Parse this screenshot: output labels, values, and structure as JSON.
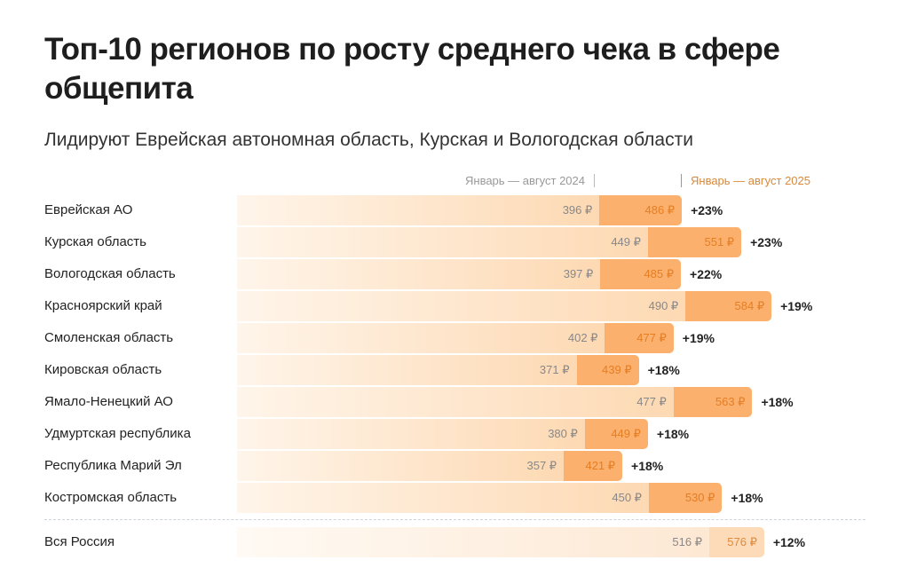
{
  "title": "Топ-10 регионов по росту среднего чека в сфере общепита",
  "subtitle": "Лидируют Еврейская автономная область, Курская и Вологодская области",
  "chart_data": {
    "type": "bar",
    "title": "Топ-10 регионов по росту среднего чека в сфере общепита",
    "subtitle": "Лидируют Еврейская автономная область, Курская и Вологодская области",
    "unit": "₽",
    "categories": [
      "Еврейская АО",
      "Курская область",
      "Вологодская область",
      "Красноярский край",
      "Смоленская область",
      "Кировская область",
      "Ямало-Ненецкий АО",
      "Удмуртская республика",
      "Республика Марий Эл",
      "Костромская область"
    ],
    "series": [
      {
        "name": "Январь — август 2024",
        "values": [
          396,
          449,
          397,
          490,
          402,
          371,
          477,
          380,
          357,
          450
        ]
      },
      {
        "name": "Январь — август 2025",
        "values": [
          486,
          551,
          485,
          584,
          477,
          439,
          563,
          449,
          421,
          530
        ]
      }
    ],
    "growth": [
      "+23%",
      "+23%",
      "+22%",
      "+19%",
      "+19%",
      "+18%",
      "+18%",
      "+18%",
      "+18%",
      "+18%"
    ],
    "total": {
      "name": "Вся Россия",
      "v2024": 516,
      "v2025": 576,
      "growth": "+12%"
    },
    "colors": {
      "bar2024": "#fdd9b3",
      "bar2025": "#fbb06e",
      "label2025": "#e67e22"
    },
    "legend_placement": "top"
  }
}
